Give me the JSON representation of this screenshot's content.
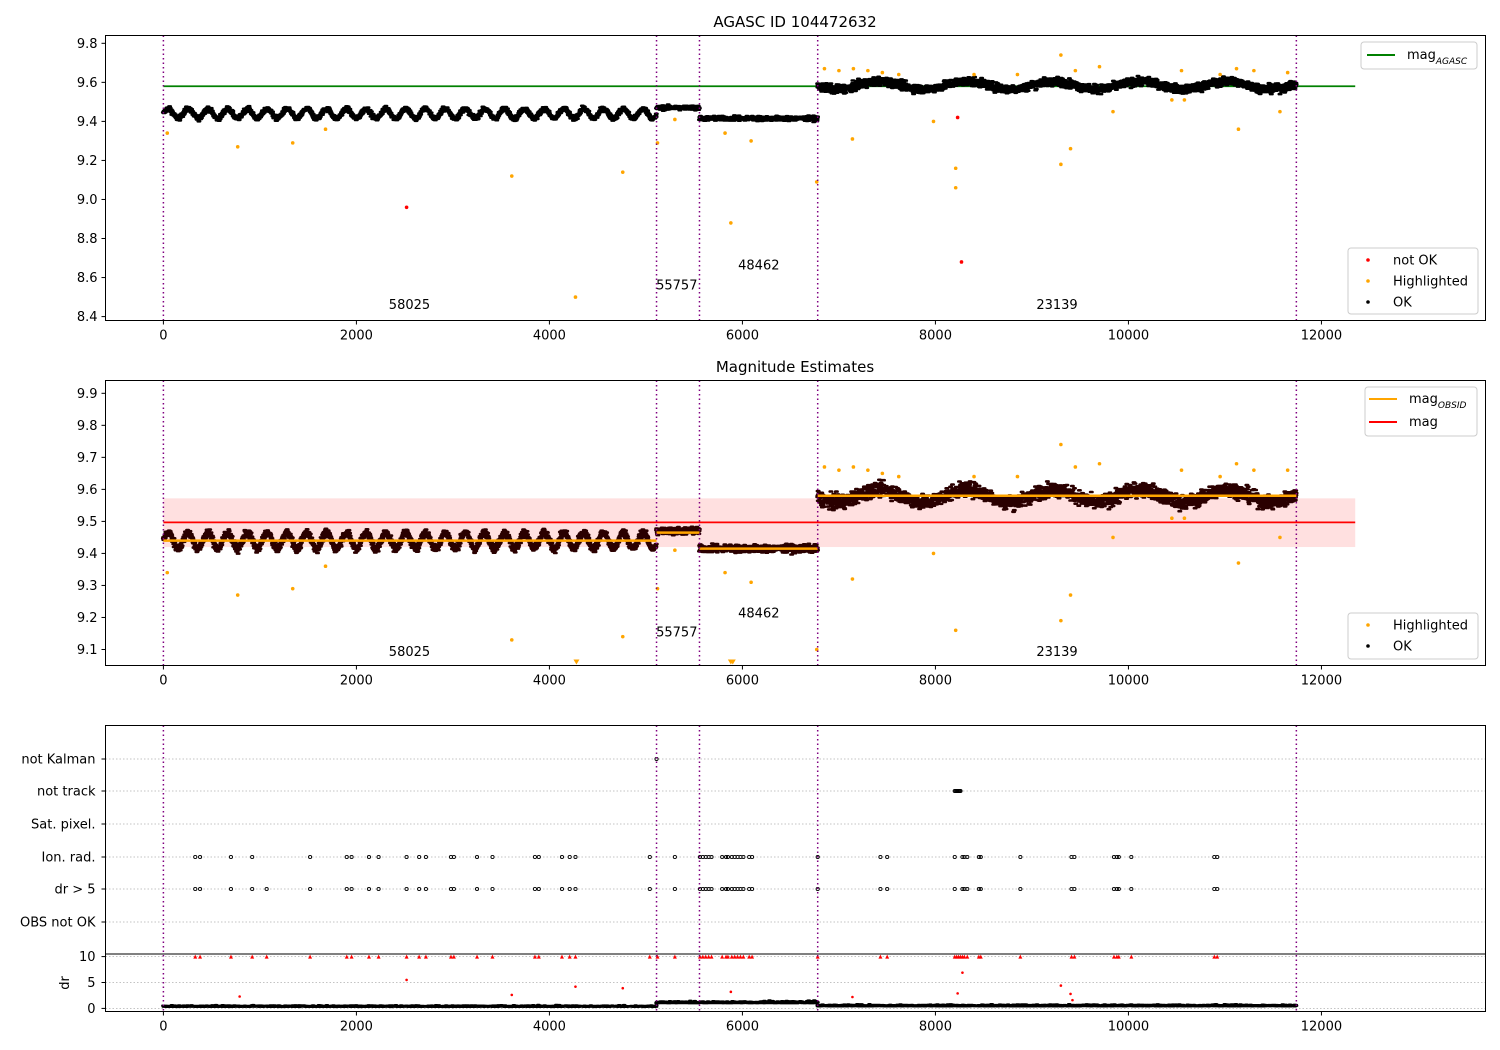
{
  "chart_data": [
    {
      "type": "scatter",
      "title": "AGASC ID 104472632",
      "xlim": [
        -600,
        13700
      ],
      "ylim": [
        8.38,
        9.84
      ],
      "x_ticks": [
        "0",
        "2000",
        "4000",
        "6000",
        "8000",
        "10000",
        "12000"
      ],
      "y_ticks": [
        "8.4",
        "8.6",
        "8.8",
        "9.0",
        "9.2",
        "9.4",
        "9.6",
        "9.8"
      ],
      "vlines": [
        0,
        5110,
        5555,
        6780,
        11740
      ],
      "obsids": [
        {
          "label": "58025",
          "x": 2550,
          "y": 8.44
        },
        {
          "label": "55757",
          "x": 5320,
          "y": 8.54
        },
        {
          "label": "48462",
          "x": 6170,
          "y": 8.64
        },
        {
          "label": "23139",
          "x": 9260,
          "y": 8.44
        }
      ],
      "hline": {
        "name": "mag_AGASC",
        "label_main": "mag",
        "label_sub": "AGASC",
        "y": 9.58,
        "x": [
          0,
          12350
        ],
        "color": "#008000"
      },
      "segments": [
        {
          "x0": 0,
          "x1": 5110,
          "base": 9.44,
          "amp": 0.025,
          "period": 205,
          "noise": 0.012
        },
        {
          "x0": 5110,
          "x1": 5555,
          "base": 9.47,
          "amp": 0,
          "period": 1,
          "noise": 0.012
        },
        {
          "x0": 5555,
          "x1": 6780,
          "base": 9.415,
          "amp": 0,
          "period": 1,
          "noise": 0.012
        },
        {
          "x0": 6780,
          "x1": 11740,
          "base": 9.585,
          "amp": 0.02,
          "period": 900,
          "noise": 0.022
        }
      ],
      "highlighted": [
        [
          40,
          9.34
        ],
        [
          770,
          9.27
        ],
        [
          1340,
          9.29
        ],
        [
          1680,
          9.36
        ],
        [
          3610,
          9.12
        ],
        [
          4270,
          8.5
        ],
        [
          4760,
          9.14
        ],
        [
          5120,
          9.29
        ],
        [
          5300,
          9.41
        ],
        [
          5820,
          9.34
        ],
        [
          5880,
          8.88
        ],
        [
          6090,
          9.3
        ],
        [
          6770,
          9.09
        ],
        [
          7140,
          9.31
        ],
        [
          7980,
          9.4
        ],
        [
          8210,
          9.16
        ],
        [
          8210,
          9.06
        ],
        [
          9300,
          9.74
        ],
        [
          9300,
          9.18
        ],
        [
          9400,
          9.26
        ],
        [
          9840,
          9.45
        ],
        [
          10450,
          9.51
        ],
        [
          10580,
          9.51
        ],
        [
          11140,
          9.36
        ],
        [
          11570,
          9.45
        ],
        [
          6850,
          9.67
        ],
        [
          7000,
          9.66
        ],
        [
          7150,
          9.67
        ],
        [
          7300,
          9.66
        ],
        [
          7450,
          9.65
        ],
        [
          7620,
          9.64
        ],
        [
          8400,
          9.64
        ],
        [
          8850,
          9.64
        ],
        [
          9450,
          9.66
        ],
        [
          9700,
          9.68
        ],
        [
          10550,
          9.66
        ],
        [
          10950,
          9.64
        ],
        [
          11120,
          9.67
        ],
        [
          11300,
          9.66
        ],
        [
          11650,
          9.65
        ]
      ],
      "not_ok": [
        [
          2520,
          8.96
        ],
        [
          8230,
          9.42
        ],
        [
          8270,
          8.68
        ]
      ],
      "legend_points": [
        {
          "label": "not OK",
          "color": "#ff0000"
        },
        {
          "label": "Highlighted",
          "color": "#ffa500"
        },
        {
          "label": "OK",
          "color": "#000000"
        }
      ]
    },
    {
      "type": "scatter",
      "title": "Magnitude Estimates",
      "xlim": [
        -600,
        13700
      ],
      "ylim": [
        9.05,
        9.94
      ],
      "x_ticks": [
        "0",
        "2000",
        "4000",
        "6000",
        "8000",
        "10000",
        "12000"
      ],
      "y_ticks": [
        "9.1",
        "9.2",
        "9.3",
        "9.4",
        "9.5",
        "9.6",
        "9.7",
        "9.8",
        "9.9"
      ],
      "vlines": [
        0,
        5110,
        5555,
        6780,
        11740
      ],
      "obsids": [
        {
          "label": "58025",
          "x": 2550,
          "y": 9.08
        },
        {
          "label": "55757",
          "x": 5320,
          "y": 9.14
        },
        {
          "label": "48462",
          "x": 6170,
          "y": 9.2
        },
        {
          "label": "23139",
          "x": 9260,
          "y": 9.08
        }
      ],
      "mag": {
        "name": "mag",
        "y": 9.497,
        "x": [
          0,
          12350
        ],
        "band": [
          9.42,
          9.572
        ],
        "color": "#ff0000"
      },
      "mag_obsid": [
        {
          "x": [
            0,
            5110
          ],
          "y": 9.44
        },
        {
          "x": [
            5110,
            5555
          ],
          "y": 9.465
        },
        {
          "x": [
            5555,
            6780
          ],
          "y": 9.415
        },
        {
          "x": [
            6780,
            11740
          ],
          "y": 9.58
        }
      ],
      "segments": [
        {
          "x0": 0,
          "x1": 5110,
          "base": 9.44,
          "amp": 0.025,
          "period": 205,
          "noise": 0.012
        },
        {
          "x0": 5110,
          "x1": 5555,
          "base": 9.47,
          "amp": 0,
          "period": 1,
          "noise": 0.012
        },
        {
          "x0": 5555,
          "x1": 6780,
          "base": 9.415,
          "amp": 0,
          "period": 1,
          "noise": 0.012
        },
        {
          "x0": 6780,
          "x1": 11740,
          "base": 9.58,
          "amp": 0.02,
          "period": 900,
          "noise": 0.022
        }
      ],
      "highlighted": [
        [
          40,
          9.34
        ],
        [
          770,
          9.27
        ],
        [
          1340,
          9.29
        ],
        [
          1680,
          9.36
        ],
        [
          3610,
          9.13
        ],
        [
          4760,
          9.14
        ],
        [
          5120,
          9.29
        ],
        [
          5300,
          9.41
        ],
        [
          5820,
          9.34
        ],
        [
          6090,
          9.31
        ],
        [
          6770,
          9.1
        ],
        [
          7140,
          9.32
        ],
        [
          7980,
          9.4
        ],
        [
          8210,
          9.16
        ],
        [
          9300,
          9.74
        ],
        [
          9300,
          9.19
        ],
        [
          9400,
          9.27
        ],
        [
          9840,
          9.45
        ],
        [
          10450,
          9.51
        ],
        [
          10580,
          9.51
        ],
        [
          11140,
          9.37
        ],
        [
          11570,
          9.45
        ],
        [
          6850,
          9.67
        ],
        [
          7000,
          9.66
        ],
        [
          7150,
          9.67
        ],
        [
          7300,
          9.66
        ],
        [
          7450,
          9.65
        ],
        [
          7620,
          9.64
        ],
        [
          8400,
          9.64
        ],
        [
          8850,
          9.64
        ],
        [
          9450,
          9.67
        ],
        [
          9700,
          9.68
        ],
        [
          10550,
          9.66
        ],
        [
          10950,
          9.64
        ],
        [
          11120,
          9.68
        ],
        [
          11300,
          9.66
        ],
        [
          11650,
          9.66
        ]
      ],
      "off_scale": [
        4280,
        5880,
        5900
      ],
      "legend_lines": [
        {
          "label_main": "mag",
          "label_sub": "OBSID",
          "color": "#ffa500"
        },
        {
          "label_main": "mag",
          "label_sub": "",
          "color": "#ff0000"
        }
      ],
      "legend_points": [
        {
          "label": "Highlighted",
          "color": "#ffa500"
        },
        {
          "label": "OK",
          "color": "#000000"
        }
      ]
    },
    {
      "type": "scatter",
      "xlim": [
        -600,
        13700
      ],
      "x_ticks": [
        "0",
        "2000",
        "4000",
        "6000",
        "8000",
        "10000",
        "12000"
      ],
      "vlines": [
        0,
        5110,
        5555,
        6780,
        11740
      ],
      "flags": [
        "not Kalman",
        "not track",
        "Sat. pixel.",
        "Ion. rad.",
        "dr > 5",
        "OBS not OK"
      ],
      "flag_events": {
        "not Kalman": [
          5110
        ],
        "not track": [
          8200,
          8210,
          8220,
          8230,
          8240,
          8250,
          8260
        ],
        "Sat. pixel.": [],
        "Ion. rad.": [
          330,
          380,
          700,
          920,
          1520,
          1900,
          1950,
          2130,
          2230,
          2520,
          2650,
          2720,
          2980,
          3010,
          3250,
          3410,
          3850,
          3890,
          4130,
          4210,
          4270,
          5040,
          5300,
          5560,
          5590,
          5620,
          5650,
          5680,
          5790,
          5830,
          5850,
          5890,
          5920,
          5950,
          5980,
          6010,
          6070,
          6100,
          6780,
          7430,
          7500,
          8200,
          8280,
          8300,
          8330,
          8450,
          8470,
          8880,
          9410,
          9440,
          9850,
          9880,
          9900,
          10030,
          10890,
          10920
        ],
        "dr > 5": [
          330,
          380,
          700,
          920,
          1070,
          1520,
          1900,
          1950,
          2130,
          2230,
          2520,
          2650,
          2720,
          2980,
          3010,
          3250,
          3410,
          3850,
          3890,
          4130,
          4210,
          4270,
          5040,
          5300,
          5560,
          5590,
          5620,
          5650,
          5680,
          5790,
          5830,
          5850,
          5890,
          5920,
          5950,
          5980,
          6010,
          6070,
          6100,
          6780,
          7430,
          7500,
          8200,
          8280,
          8300,
          8330,
          8450,
          8470,
          8880,
          9410,
          9440,
          9850,
          9880,
          9900,
          10030,
          10890,
          10920
        ],
        "OBS not OK": []
      },
      "dr": {
        "ylabel": "dr",
        "ylim": [
          -0.5,
          10.5
        ],
        "y_ticks": [
          "0",
          "5",
          "10"
        ],
        "segments": [
          {
            "x0": 0,
            "x1": 5110,
            "base": 0.3,
            "noise": 0.25
          },
          {
            "x0": 5110,
            "x1": 6780,
            "base": 1.0,
            "noise": 0.35
          },
          {
            "x0": 6780,
            "x1": 11740,
            "base": 0.4,
            "noise": 0.3
          }
        ],
        "outliers": [
          [
            2520,
            5.5
          ],
          [
            790,
            2.3
          ],
          [
            3610,
            2.6
          ],
          [
            4270,
            4.2
          ],
          [
            4760,
            3.9
          ],
          [
            5880,
            3.2
          ],
          [
            7140,
            2.2
          ],
          [
            8230,
            2.9
          ],
          [
            8280,
            6.9
          ],
          [
            9300,
            4.4
          ],
          [
            9400,
            2.8
          ],
          [
            9420,
            1.6
          ]
        ],
        "clipped": [
          330,
          380,
          700,
          920,
          1070,
          1520,
          1900,
          1950,
          2130,
          2230,
          2520,
          2650,
          2720,
          2980,
          3010,
          3250,
          3410,
          3850,
          3890,
          4130,
          4210,
          4270,
          5040,
          5120,
          5300,
          5560,
          5590,
          5620,
          5650,
          5680,
          5790,
          5830,
          5850,
          5890,
          5920,
          5950,
          5980,
          6010,
          6070,
          6100,
          6780,
          7430,
          7500,
          8200,
          8220,
          8240,
          8260,
          8280,
          8300,
          8330,
          8450,
          8470,
          8880,
          9410,
          9440,
          9850,
          9880,
          9900,
          10030,
          10890,
          10920
        ]
      }
    }
  ]
}
